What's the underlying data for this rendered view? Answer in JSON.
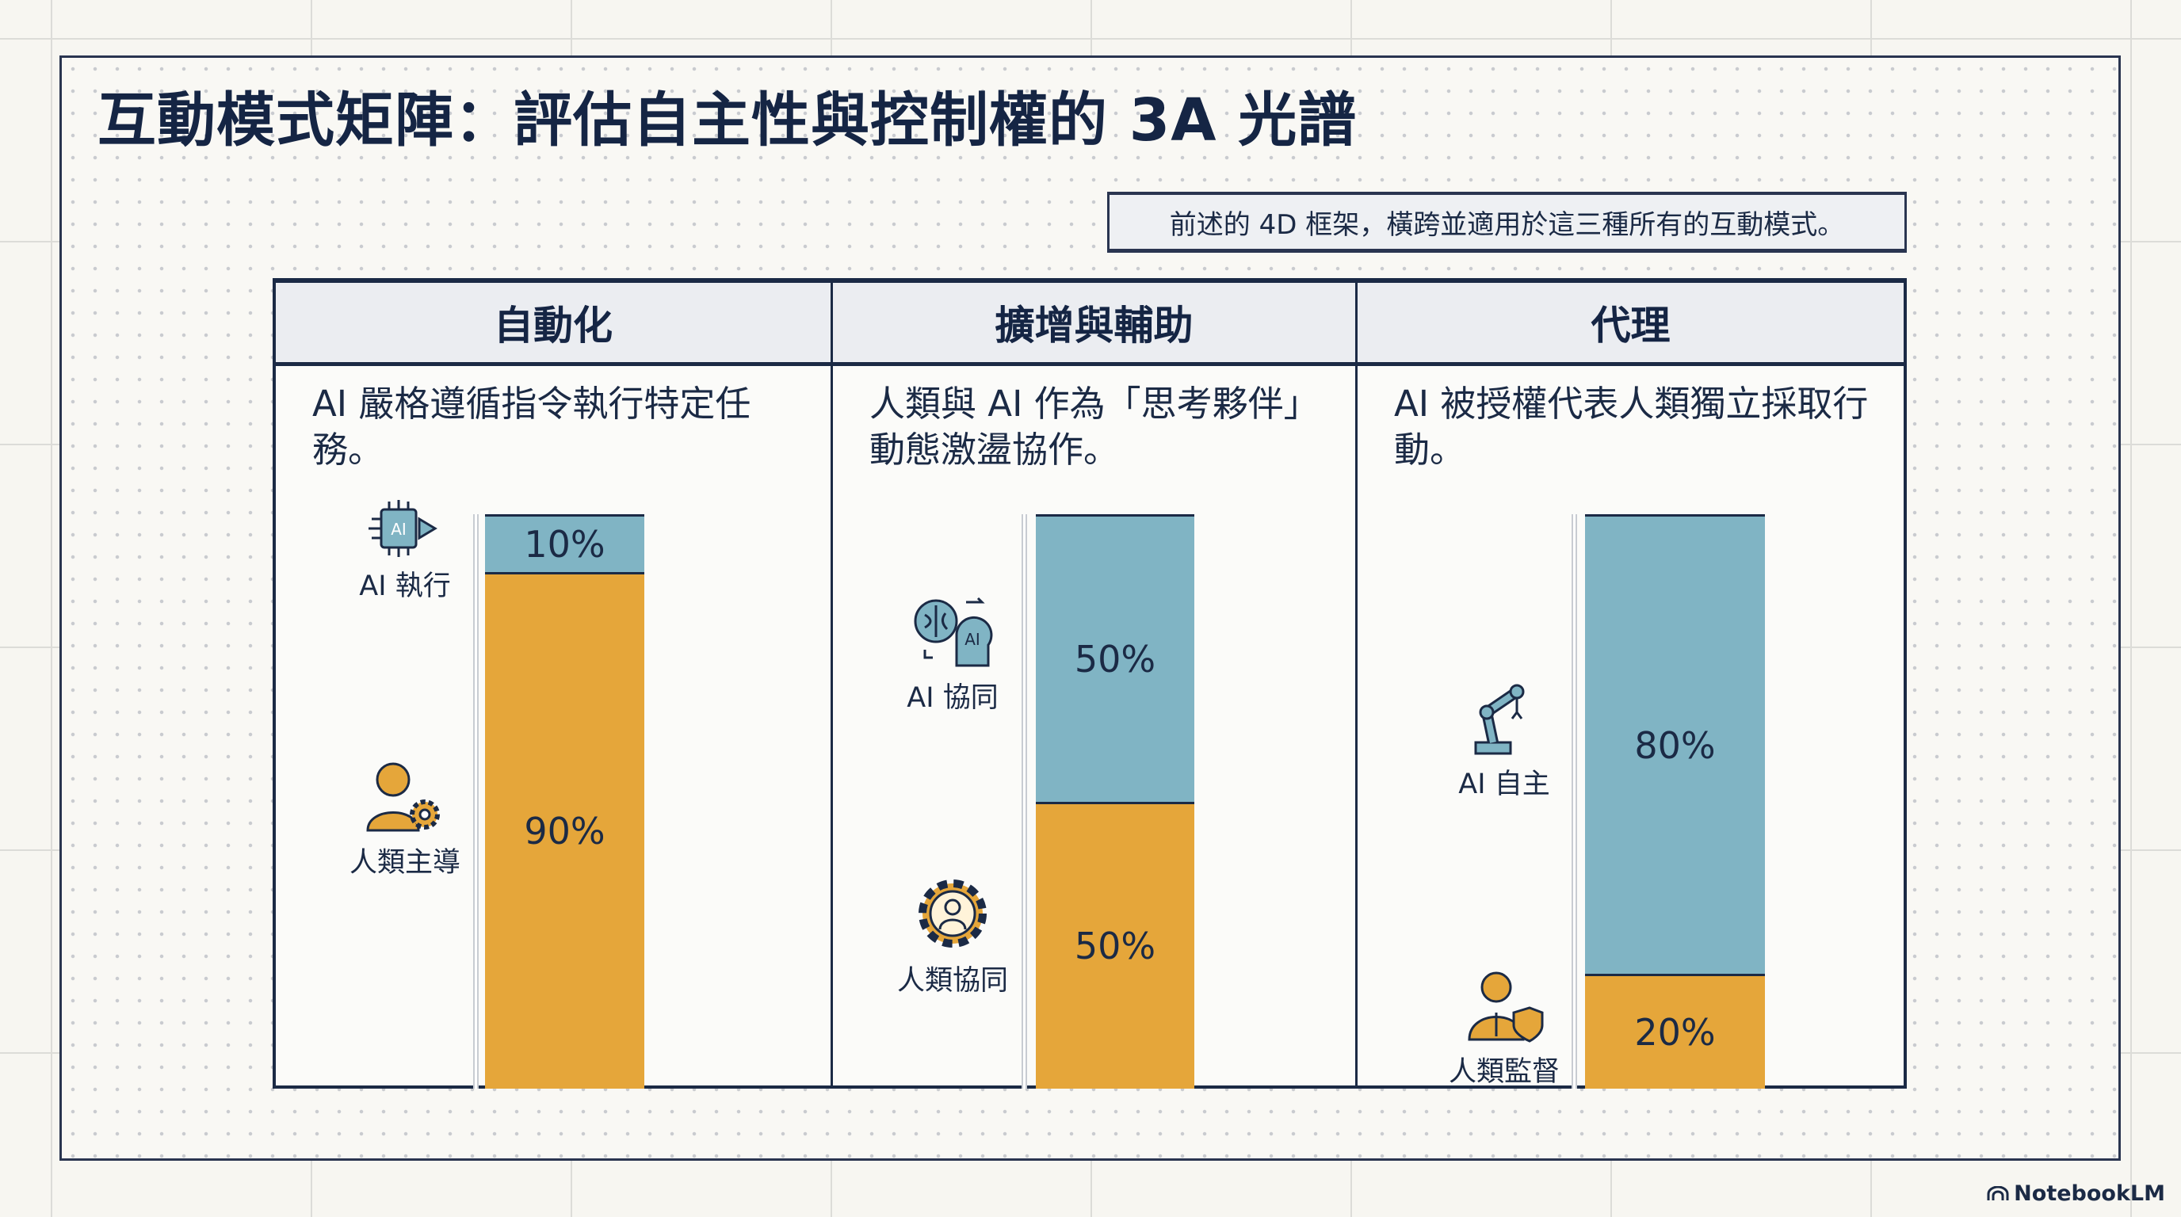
{
  "title": "互動模式矩陣：評估自主性與控制權的 3A 光譜",
  "note": "前述的 4D 框架，橫跨並適用於這三種所有的互動模式。",
  "brand": "NotebookLM",
  "colors": {
    "ai": "#80b4c4",
    "human": "#e5a63a",
    "navy": "#1b2a45"
  },
  "columns": [
    {
      "header": "自動化",
      "description": "AI 嚴格遵循指令執行特定任務。",
      "ai_label": "AI 執行",
      "human_label": "人類主導",
      "ai_icon": "ai-chip-icon",
      "human_icon": "person-gear-icon"
    },
    {
      "header": "擴增與輔助",
      "description": "人類與 AI 作為「思考夥伴」動態激盪協作。",
      "ai_label": "AI 協同",
      "human_label": "人類協同",
      "ai_icon": "brain-ai-head-icon",
      "human_icon": "gear-person-icon"
    },
    {
      "header": "代理",
      "description": "AI 被授權代表人類獨立採取行動。",
      "ai_label": "AI 自主",
      "human_label": "人類監督",
      "ai_icon": "robot-arm-icon",
      "human_icon": "supervisor-shield-icon"
    }
  ],
  "chart_data": {
    "type": "bar",
    "stacked": true,
    "categories": [
      "自動化",
      "擴增與輔助",
      "代理"
    ],
    "series": [
      {
        "name": "AI",
        "values": [
          10,
          50,
          80
        ],
        "labels": [
          "10%",
          "50%",
          "80%"
        ]
      },
      {
        "name": "人類",
        "values": [
          90,
          50,
          20
        ],
        "labels": [
          "90%",
          "50%",
          "20%"
        ]
      }
    ],
    "ylim": [
      0,
      100
    ]
  }
}
